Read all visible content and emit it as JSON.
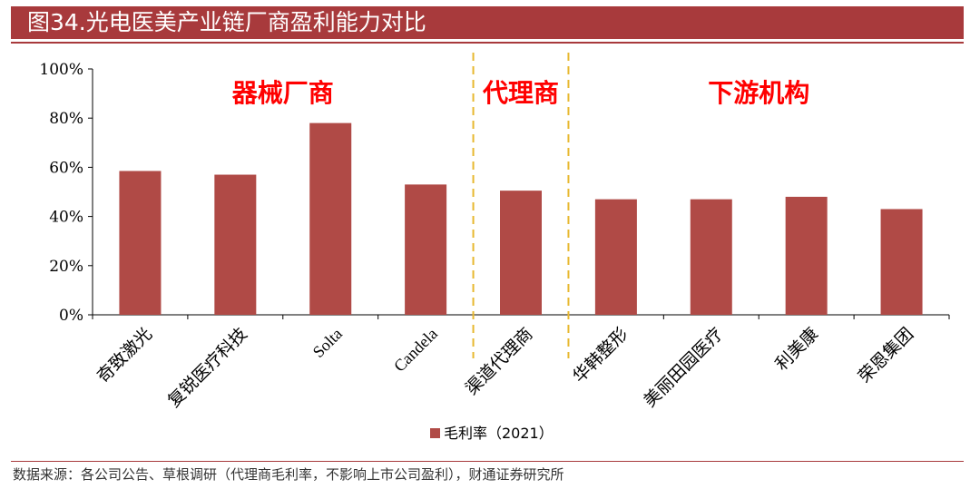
{
  "title": "图34.光电医美产业链厂商盈利能力对比",
  "source": "数据来源：各公司公告、草根调研（代理商毛利率，不影响上市公司盈利），财通证券研究所",
  "colors": {
    "bar": "#b04a46",
    "divider": "#e8b830",
    "group_label": "#ff0000",
    "title_bg": "#a83a3c"
  },
  "chart_data": {
    "type": "bar",
    "categories": [
      "奇致激光",
      "复锐医疗科技",
      "Solta",
      "Candela",
      "渠道代理商",
      "华韩整形",
      "美丽田园医疗",
      "利美康",
      "荣恩集团"
    ],
    "series": [
      {
        "name": "毛利率（2021）",
        "values": [
          58.5,
          57,
          78,
          53,
          50.5,
          47,
          47,
          48,
          43
        ]
      }
    ],
    "ylim": [
      0,
      100
    ],
    "yticks": [
      "0%",
      "20%",
      "40%",
      "60%",
      "80%",
      "100%"
    ],
    "legend": "bottom-center",
    "group_labels": [
      {
        "text": "器械厂商",
        "categories": [
          0,
          3
        ]
      },
      {
        "text": "代理商",
        "categories": [
          4,
          4
        ]
      },
      {
        "text": "下游机构",
        "categories": [
          5,
          8
        ]
      }
    ],
    "dividers_after": [
      3,
      4
    ]
  }
}
